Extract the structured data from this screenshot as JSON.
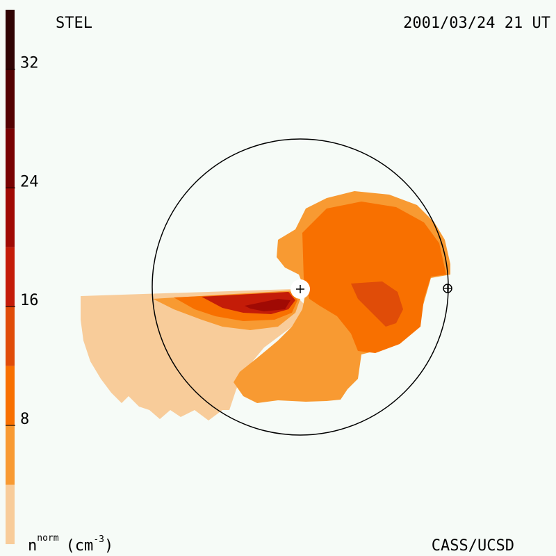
{
  "title": "STEL",
  "timestamp": "2001/03/24 21 UT",
  "credit": "CASS/UCSD",
  "colorbar": {
    "label": {
      "base": "n",
      "sup": "norm",
      "unit": "(cm",
      "unit_sup": "-3",
      "close": ")"
    },
    "range": [
      0,
      36
    ],
    "ticks": [
      8,
      16,
      24,
      32
    ],
    "levels": [
      0,
      4,
      8,
      12,
      16,
      20,
      24,
      28,
      32,
      36
    ],
    "colors": [
      "#f8cc9a",
      "#f89a32",
      "#f87000",
      "#e04c08",
      "#c41c08",
      "#a00a04",
      "#780202",
      "#540202",
      "#300404"
    ]
  }
}
